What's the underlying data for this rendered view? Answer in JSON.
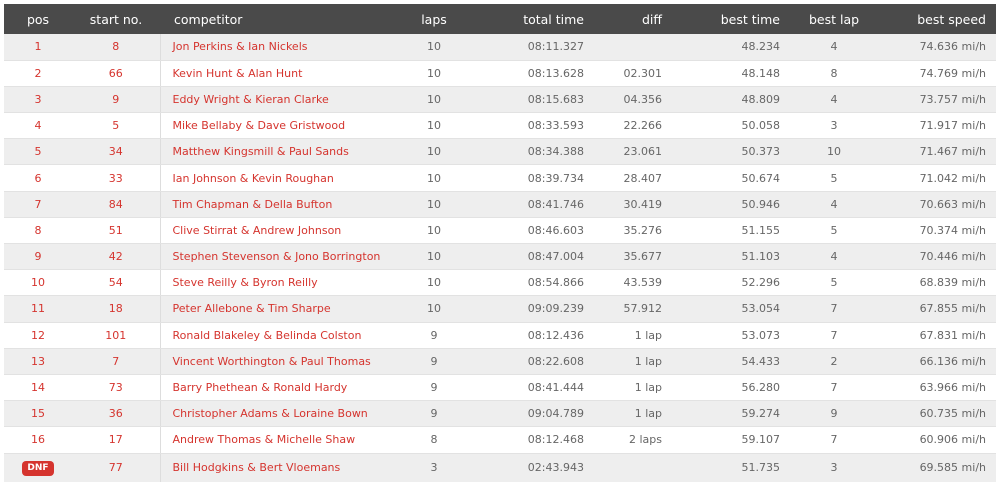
{
  "columns": {
    "pos": "pos",
    "start_no": "start no.",
    "competitor": "competitor",
    "laps": "laps",
    "total_time": "total time",
    "diff": "diff",
    "best_time": "best time",
    "best_lap": "best lap",
    "best_speed": "best speed"
  },
  "rows": [
    {
      "pos": "1",
      "start_no": "8",
      "competitor": "Jon Perkins & Ian Nickels",
      "laps": "10",
      "total_time": "08:11.327",
      "diff": "",
      "best_time": "48.234",
      "best_lap": "4",
      "best_speed": "74.636 mi/h"
    },
    {
      "pos": "2",
      "start_no": "66",
      "competitor": "Kevin Hunt & Alan Hunt",
      "laps": "10",
      "total_time": "08:13.628",
      "diff": "02.301",
      "best_time": "48.148",
      "best_lap": "8",
      "best_speed": "74.769 mi/h"
    },
    {
      "pos": "3",
      "start_no": "9",
      "competitor": "Eddy Wright & Kieran Clarke",
      "laps": "10",
      "total_time": "08:15.683",
      "diff": "04.356",
      "best_time": "48.809",
      "best_lap": "4",
      "best_speed": "73.757 mi/h"
    },
    {
      "pos": "4",
      "start_no": "5",
      "competitor": "Mike Bellaby & Dave Gristwood",
      "laps": "10",
      "total_time": "08:33.593",
      "diff": "22.266",
      "best_time": "50.058",
      "best_lap": "3",
      "best_speed": "71.917 mi/h"
    },
    {
      "pos": "5",
      "start_no": "34",
      "competitor": "Matthew Kingsmill & Paul Sands",
      "laps": "10",
      "total_time": "08:34.388",
      "diff": "23.061",
      "best_time": "50.373",
      "best_lap": "10",
      "best_speed": "71.467 mi/h"
    },
    {
      "pos": "6",
      "start_no": "33",
      "competitor": "Ian Johnson & Kevin Roughan",
      "laps": "10",
      "total_time": "08:39.734",
      "diff": "28.407",
      "best_time": "50.674",
      "best_lap": "5",
      "best_speed": "71.042 mi/h"
    },
    {
      "pos": "7",
      "start_no": "84",
      "competitor": "Tim Chapman & Della Bufton",
      "laps": "10",
      "total_time": "08:41.746",
      "diff": "30.419",
      "best_time": "50.946",
      "best_lap": "4",
      "best_speed": "70.663 mi/h"
    },
    {
      "pos": "8",
      "start_no": "51",
      "competitor": "Clive Stirrat & Andrew Johnson",
      "laps": "10",
      "total_time": "08:46.603",
      "diff": "35.276",
      "best_time": "51.155",
      "best_lap": "5",
      "best_speed": "70.374 mi/h"
    },
    {
      "pos": "9",
      "start_no": "42",
      "competitor": "Stephen Stevenson & Jono Borrington",
      "laps": "10",
      "total_time": "08:47.004",
      "diff": "35.677",
      "best_time": "51.103",
      "best_lap": "4",
      "best_speed": "70.446 mi/h"
    },
    {
      "pos": "10",
      "start_no": "54",
      "competitor": "Steve Reilly & Byron Reilly",
      "laps": "10",
      "total_time": "08:54.866",
      "diff": "43.539",
      "best_time": "52.296",
      "best_lap": "5",
      "best_speed": "68.839 mi/h"
    },
    {
      "pos": "11",
      "start_no": "18",
      "competitor": "Peter Allebone & Tim Sharpe",
      "laps": "10",
      "total_time": "09:09.239",
      "diff": "57.912",
      "best_time": "53.054",
      "best_lap": "7",
      "best_speed": "67.855 mi/h"
    },
    {
      "pos": "12",
      "start_no": "101",
      "competitor": "Ronald Blakeley & Belinda Colston",
      "laps": "9",
      "total_time": "08:12.436",
      "diff": "1 lap",
      "best_time": "53.073",
      "best_lap": "7",
      "best_speed": "67.831 mi/h"
    },
    {
      "pos": "13",
      "start_no": "7",
      "competitor": "Vincent Worthington & Paul Thomas",
      "laps": "9",
      "total_time": "08:22.608",
      "diff": "1 lap",
      "best_time": "54.433",
      "best_lap": "2",
      "best_speed": "66.136 mi/h"
    },
    {
      "pos": "14",
      "start_no": "73",
      "competitor": "Barry Phethean & Ronald Hardy",
      "laps": "9",
      "total_time": "08:41.444",
      "diff": "1 lap",
      "best_time": "56.280",
      "best_lap": "7",
      "best_speed": "63.966 mi/h"
    },
    {
      "pos": "15",
      "start_no": "36",
      "competitor": "Christopher Adams & Loraine Bown",
      "laps": "9",
      "total_time": "09:04.789",
      "diff": "1 lap",
      "best_time": "59.274",
      "best_lap": "9",
      "best_speed": "60.735 mi/h"
    },
    {
      "pos": "16",
      "start_no": "17",
      "competitor": "Andrew Thomas & Michelle Shaw",
      "laps": "8",
      "total_time": "08:12.468",
      "diff": "2 laps",
      "best_time": "59.107",
      "best_lap": "7",
      "best_speed": "60.906 mi/h"
    },
    {
      "pos": "DNF",
      "start_no": "77",
      "competitor": "Bill Hodgkins & Bert Vloemans",
      "laps": "3",
      "total_time": "02:43.943",
      "diff": "",
      "best_time": "51.735",
      "best_lap": "3",
      "best_speed": "69.585 mi/h"
    }
  ],
  "colors": {
    "header_bg": "#4a4a4a",
    "accent_red": "#d5342e",
    "row_alt": "#eeeeee"
  }
}
